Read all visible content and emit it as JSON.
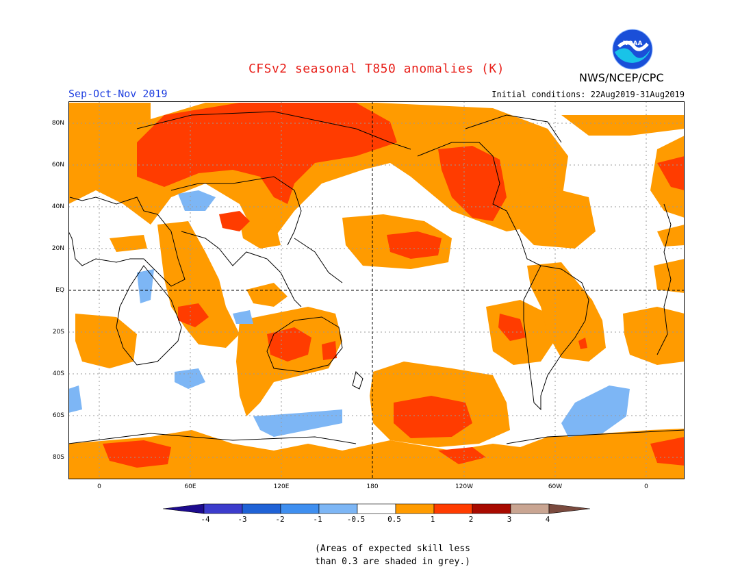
{
  "title": "CFSv2 seasonal T850 anomalies (K)",
  "org": "NWS/NCEP/CPC",
  "logo_text": "NOAA",
  "season": "Sep-Oct-Nov 2019",
  "initial_conditions": "Initial conditions: 22Aug2019-31Aug2019",
  "lat_labels": [
    "80N",
    "60N",
    "40N",
    "20N",
    "EQ",
    "20S",
    "40S",
    "60S",
    "80S"
  ],
  "lon_labels": [
    "0",
    "60E",
    "120E",
    "180",
    "120W",
    "60W",
    "0"
  ],
  "colorbar": {
    "labels": [
      "-4",
      "-3",
      "-2",
      "-1",
      "-0.5",
      "0.5",
      "1",
      "2",
      "3",
      "4"
    ],
    "colors": [
      "#1d0b8e",
      "#3c3ccc",
      "#1f62d6",
      "#3f8ff0",
      "#7db6f5",
      "#ffffff",
      "#ff9b00",
      "#ff3c00",
      "#a80a00",
      "#c9a592",
      "#7a4a3e"
    ]
  },
  "note_lines": [
    "(Areas of expected skill less",
    "than 0.3 are shaded in grey.)"
  ],
  "colors": {
    "title": "#e8201a",
    "season": "#1f3fe0",
    "warm_1": "#ff9b00",
    "warm_2": "#ff3c00",
    "cool_1": "#7db6f5"
  }
}
